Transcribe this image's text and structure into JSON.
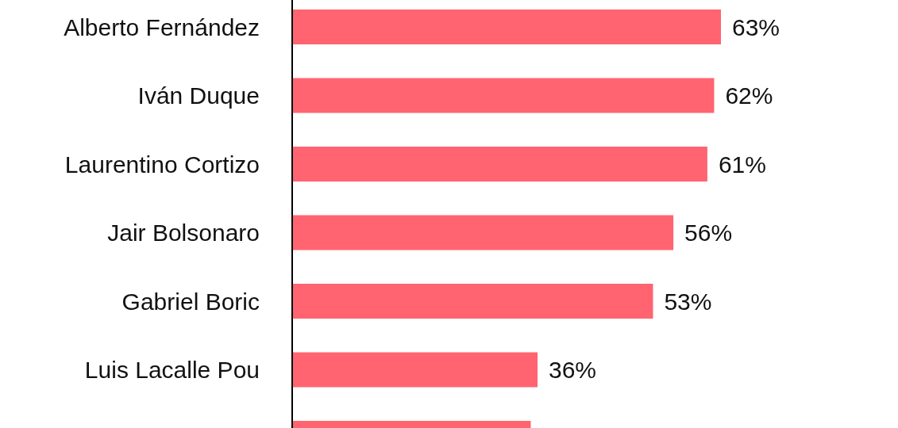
{
  "chart_data": {
    "type": "bar",
    "orientation": "horizontal",
    "categories": [
      "Alberto Fernández",
      "Iván Duque",
      "Laurentino Cortizo",
      "Jair Bolsonaro",
      "Gabriel Boric",
      "Luis Lacalle Pou",
      null
    ],
    "values": [
      63,
      62,
      61,
      56,
      53,
      36,
      35
    ],
    "color": "#ff6470",
    "value_labels": [
      "63%",
      "62%",
      "61%",
      "56%",
      "53%",
      "36%",
      null
    ]
  }
}
